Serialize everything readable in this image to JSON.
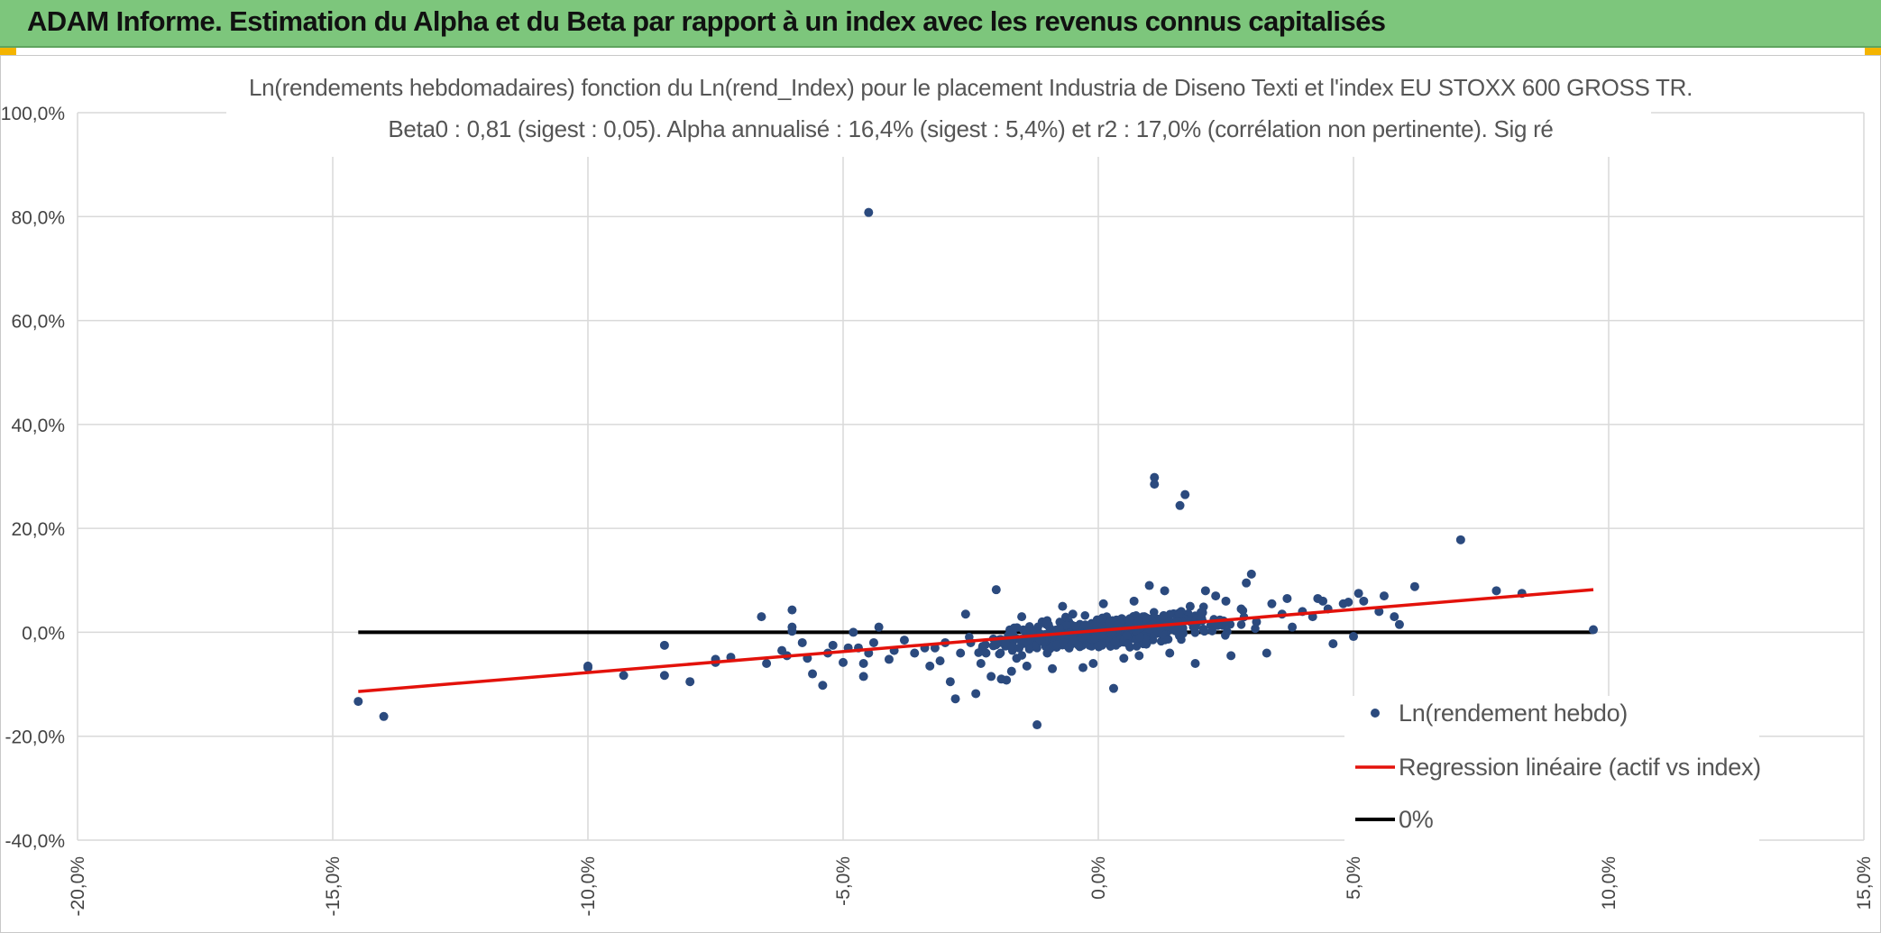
{
  "page": {
    "title": "ADAM Informe. Estimation du Alpha et du Beta par rapport à un index avec les revenus connus capitalisés"
  },
  "colors": {
    "title_bar": "#7dc67c",
    "points": "#2b4a7e",
    "regression": "#e3120b",
    "zero_line": "#000000",
    "grid": "#d9d9d9",
    "corner_accent": "#f4b400"
  },
  "chart_data": {
    "type": "scatter",
    "subtitle_lines": [
      "Ln(rendements hebdomadaires) fonction du Ln(rend_Index) pour le placement Industria de Diseno Texti et l'index EU STOXX 600 GROSS TR.",
      "Beta0 : 0,81 (sigest : 0,05). Alpha annualisé : 16,4% (sigest : 5,4%) et r2 : 17,0% (corrélation non pertinente). Sig ré"
    ],
    "xlim": [
      -0.2,
      0.15
    ],
    "ylim": [
      -0.4,
      1.0
    ],
    "x_ticks": [
      -0.2,
      -0.15,
      -0.1,
      -0.05,
      0.0,
      0.05,
      0.1,
      0.15
    ],
    "y_ticks": [
      -0.4,
      -0.2,
      0.0,
      0.2,
      0.4,
      0.6,
      0.8,
      1.0
    ],
    "x_tick_labels": [
      "-20,0%",
      "-15,0%",
      "-10,0%",
      "-5,0%",
      "0,0%",
      "5,0%",
      "10,0%",
      "15,0%"
    ],
    "y_tick_labels": [
      "-40,0%",
      "-20,0%",
      "0,0%",
      "20,0%",
      "40,0%",
      "60,0%",
      "80,0%",
      "100,0%"
    ],
    "grid": true,
    "legend_position": "bottom-right",
    "series": [
      {
        "name": "Ln(rendement hebdo)",
        "kind": "scatter",
        "points": [
          [
            -0.145,
            -0.133
          ],
          [
            -0.14,
            -0.162
          ],
          [
            -0.1,
            -0.068
          ],
          [
            -0.1,
            -0.065
          ],
          [
            -0.093,
            -0.083
          ],
          [
            -0.085,
            -0.025
          ],
          [
            -0.085,
            -0.083
          ],
          [
            -0.08,
            -0.095
          ],
          [
            -0.075,
            -0.052
          ],
          [
            -0.075,
            -0.058
          ],
          [
            -0.072,
            -0.048
          ],
          [
            -0.066,
            0.03
          ],
          [
            -0.065,
            -0.06
          ],
          [
            -0.062,
            -0.035
          ],
          [
            -0.061,
            -0.045
          ],
          [
            -0.06,
            0.043
          ],
          [
            -0.06,
            0.01
          ],
          [
            -0.06,
            0.002
          ],
          [
            -0.058,
            -0.02
          ],
          [
            -0.057,
            -0.05
          ],
          [
            -0.056,
            -0.08
          ],
          [
            -0.054,
            -0.102
          ],
          [
            -0.053,
            -0.04
          ],
          [
            -0.052,
            -0.025
          ],
          [
            -0.05,
            -0.058
          ],
          [
            -0.049,
            -0.03
          ],
          [
            -0.048,
            0.0
          ],
          [
            -0.047,
            -0.03
          ],
          [
            -0.046,
            -0.06
          ],
          [
            -0.046,
            -0.085
          ],
          [
            -0.045,
            -0.04
          ],
          [
            -0.044,
            -0.02
          ],
          [
            -0.043,
            0.01
          ],
          [
            -0.045,
            0.808
          ],
          [
            -0.041,
            -0.052
          ],
          [
            -0.04,
            -0.035
          ],
          [
            -0.038,
            -0.015
          ],
          [
            -0.036,
            -0.04
          ],
          [
            -0.034,
            -0.03
          ],
          [
            -0.033,
            -0.065
          ],
          [
            -0.032,
            -0.03
          ],
          [
            -0.031,
            -0.055
          ],
          [
            -0.03,
            -0.02
          ],
          [
            -0.029,
            -0.095
          ],
          [
            -0.028,
            -0.128
          ],
          [
            -0.027,
            -0.04
          ],
          [
            -0.026,
            0.035
          ],
          [
            -0.025,
            -0.02
          ],
          [
            -0.024,
            -0.118
          ],
          [
            -0.023,
            -0.06
          ],
          [
            -0.022,
            -0.04
          ],
          [
            -0.021,
            -0.085
          ],
          [
            -0.02,
            0.082
          ],
          [
            -0.019,
            -0.09
          ],
          [
            -0.018,
            -0.092
          ],
          [
            -0.017,
            -0.075
          ],
          [
            -0.016,
            -0.05
          ],
          [
            -0.015,
            0.03
          ],
          [
            -0.014,
            -0.065
          ],
          [
            -0.012,
            -0.178
          ],
          [
            -0.011,
            0.02
          ],
          [
            -0.01,
            -0.04
          ],
          [
            -0.009,
            -0.07
          ],
          [
            -0.007,
            0.05
          ],
          [
            -0.005,
            0.035
          ],
          [
            -0.003,
            -0.068
          ],
          [
            -0.001,
            -0.06
          ],
          [
            0.001,
            0.055
          ],
          [
            0.003,
            -0.108
          ],
          [
            0.005,
            -0.05
          ],
          [
            0.007,
            0.06
          ],
          [
            0.008,
            -0.045
          ],
          [
            0.01,
            0.09
          ],
          [
            0.011,
            0.298
          ],
          [
            0.011,
            0.285
          ],
          [
            0.013,
            0.08
          ],
          [
            0.014,
            -0.04
          ],
          [
            0.016,
            0.244
          ],
          [
            0.017,
            0.265
          ],
          [
            0.018,
            0.05
          ],
          [
            0.019,
            -0.06
          ],
          [
            0.021,
            0.08
          ],
          [
            0.023,
            0.07
          ],
          [
            0.025,
            0.06
          ],
          [
            0.026,
            -0.045
          ],
          [
            0.028,
            0.045
          ],
          [
            0.029,
            0.095
          ],
          [
            0.03,
            0.112
          ],
          [
            0.031,
            0.02
          ],
          [
            0.033,
            -0.04
          ],
          [
            0.034,
            0.055
          ],
          [
            0.036,
            0.035
          ],
          [
            0.037,
            0.065
          ],
          [
            0.038,
            0.01
          ],
          [
            0.04,
            0.04
          ],
          [
            0.042,
            0.03
          ],
          [
            0.043,
            0.065
          ],
          [
            0.044,
            0.06
          ],
          [
            0.045,
            0.045
          ],
          [
            0.046,
            -0.022
          ],
          [
            0.048,
            0.055
          ],
          [
            0.049,
            0.058
          ],
          [
            0.05,
            -0.008
          ],
          [
            0.051,
            0.075
          ],
          [
            0.052,
            0.06
          ],
          [
            0.055,
            0.04
          ],
          [
            0.056,
            0.07
          ],
          [
            0.058,
            0.03
          ],
          [
            0.059,
            0.015
          ],
          [
            0.062,
            0.088
          ],
          [
            0.071,
            0.178
          ],
          [
            0.078,
            0.08
          ],
          [
            0.083,
            0.075
          ],
          [
            0.097,
            0.005
          ]
        ]
      },
      {
        "name": "Regression linéaire (actif vs index)",
        "kind": "line",
        "points": [
          [
            -0.145,
            -0.114
          ],
          [
            0.097,
            0.082
          ]
        ]
      },
      {
        "name": "0%",
        "kind": "line",
        "points": [
          [
            -0.145,
            0.0
          ],
          [
            0.097,
            0.0
          ]
        ]
      }
    ]
  }
}
